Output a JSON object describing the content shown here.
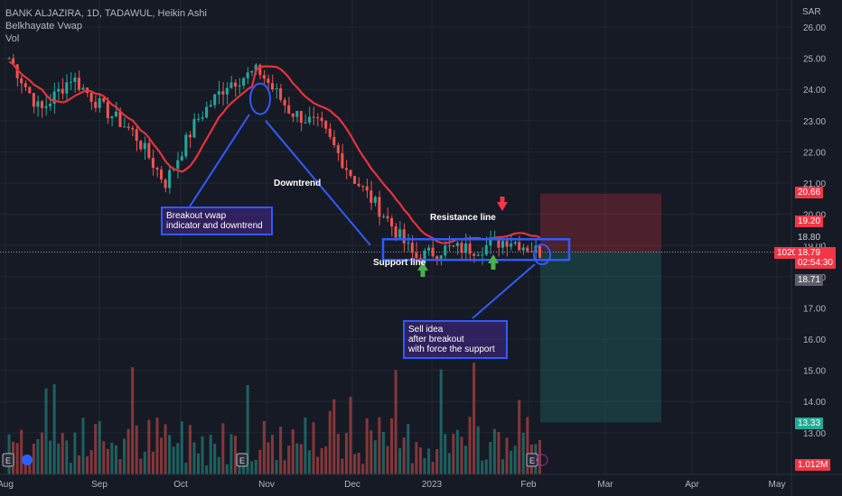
{
  "legend": {
    "title": "BANK ALJAZIRA, 1D, TADAWUL, Heikin Ashi",
    "indicator": "Belkhayate Vwap",
    "volume": "Vol"
  },
  "currency": "SAR",
  "annotations": {
    "breakout_note": "Breakout vwap\nindicator and downtrend",
    "downtrend": "Downtrend",
    "resistance": "Resistance line",
    "support": "Support line",
    "sell_note": "Sell idea\nafter breakout\nwith force the support"
  },
  "price_tags": {
    "target_high": "20.66",
    "resistance": "19.20",
    "level_1880": "18.80",
    "last_price": "18.79",
    "countdown": "02:54:30",
    "level_1871": "18.71",
    "target_low": "13.33",
    "volume": "1.012M",
    "counter": "1020"
  },
  "colors": {
    "background": "#161a25",
    "up": "#26a69a",
    "down": "#ef5350",
    "vwap_up": "#e5333a",
    "vwap_dn": "#2a7d5c",
    "annot_blue": "#2f5bff"
  },
  "chart_data": {
    "type": "candlestick",
    "title": "BANK ALJAZIRA, 1D, TADAWUL, Heikin Ashi",
    "y_ticks": [
      "13.00",
      "14.00",
      "15.00",
      "16.00",
      "17.00",
      "18.00",
      "19.00",
      "20.00",
      "21.00",
      "22.00",
      "23.00",
      "24.00",
      "25.00",
      "26.00"
    ],
    "x_ticks": [
      "Aug",
      "Sep",
      "Oct",
      "Nov",
      "Dec",
      "2023",
      "Feb",
      "Mar",
      "Apr",
      "May"
    ],
    "ylim": [
      12.5,
      26.3
    ],
    "approx_close_path": [
      {
        "date": "Aug",
        "close": 25.0
      },
      {
        "date": "Aug mid",
        "close": 23.3
      },
      {
        "date": "Aug end",
        "close": 24.4
      },
      {
        "date": "Sep",
        "close": 23.4
      },
      {
        "date": "Sep mid",
        "close": 22.6
      },
      {
        "date": "Sep end",
        "close": 21.0
      },
      {
        "date": "Oct",
        "close": 23.0
      },
      {
        "date": "Oct mid",
        "close": 24.2
      },
      {
        "date": "Oct end",
        "close": 24.6
      },
      {
        "date": "Nov",
        "close": 23.3
      },
      {
        "date": "Nov mid",
        "close": 22.8
      },
      {
        "date": "Nov end",
        "close": 21.2
      },
      {
        "date": "Dec",
        "close": 20.0
      },
      {
        "date": "Dec mid",
        "close": 18.6
      },
      {
        "date": "2023",
        "close": 18.9
      },
      {
        "date": "Jan mid",
        "close": 18.9
      },
      {
        "date": "Jan end",
        "close": 19.2
      },
      {
        "date": "Feb",
        "close": 18.79
      }
    ],
    "trade_zone": {
      "entry": 18.79,
      "stop": 20.66,
      "target": 13.33
    },
    "levels": {
      "resistance": 19.2,
      "support": 18.71
    }
  }
}
